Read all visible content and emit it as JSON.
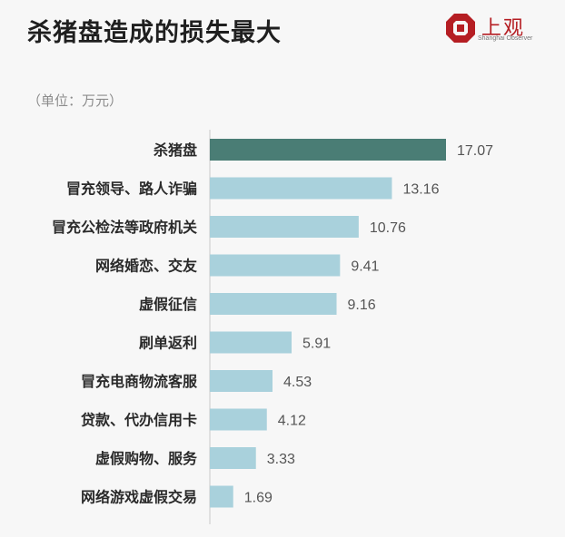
{
  "header": {
    "title": "杀猪盘造成的损失最大",
    "logo_text": "上观",
    "logo_sub": "Shanghai Observer"
  },
  "unit_label": "（单位：万元）",
  "colors": {
    "highlight": "#4a7d75",
    "bar": "#a9d1dc",
    "axis": "#c8c8c8"
  },
  "chart_data": {
    "type": "bar",
    "orientation": "horizontal",
    "title": "杀猪盘造成的损失最大",
    "unit": "（单位：万元）",
    "categories": [
      "杀猪盘",
      "冒充领导、路人诈骗",
      "冒充公检法等政府机关",
      "网络婚恋、交友",
      "虚假征信",
      "刷单返利",
      "冒充电商物流客服",
      "贷款、代办信用卡",
      "虚假购物、服务",
      "网络游戏虚假交易"
    ],
    "values": [
      17.07,
      13.16,
      10.76,
      9.41,
      9.16,
      5.91,
      4.53,
      4.12,
      3.33,
      1.69
    ],
    "value_labels": [
      "17.07",
      "13.16",
      "10.76",
      "9.41",
      "9.16",
      "5.91",
      "4.53",
      "4.12",
      "3.33",
      "1.69"
    ],
    "highlight_index": 0,
    "grid": false,
    "legend": "none"
  }
}
